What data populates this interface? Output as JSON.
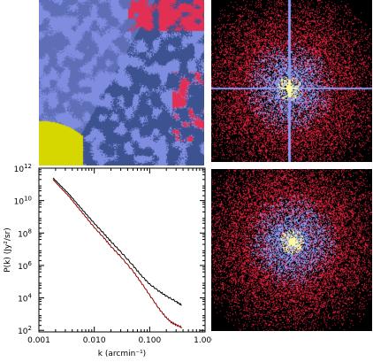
{
  "chart_data": {
    "type": "line",
    "xlabel": "k (arcmin⁻¹)",
    "ylabel": "P(k) (Jy²/sr)",
    "xscale": "log",
    "yscale": "log",
    "xlim": [
      0.001,
      1.0
    ],
    "ylim": [
      80,
      1000000000000.0
    ],
    "xticks": [
      {
        "value": 0.001,
        "label": "0.001"
      },
      {
        "value": 0.01,
        "label": "0.010"
      },
      {
        "value": 0.1,
        "label": "0.100"
      },
      {
        "value": 1.0,
        "label": "1.000"
      }
    ],
    "yticks": [
      {
        "value": 100,
        "base": "10",
        "exp": "2"
      },
      {
        "value": 10000,
        "base": "10",
        "exp": "4"
      },
      {
        "value": 1000000,
        "base": "10",
        "exp": "6"
      },
      {
        "value": 100000000,
        "base": "10",
        "exp": "8"
      },
      {
        "value": 10000000000,
        "base": "10",
        "exp": "10"
      },
      {
        "value": 1000000000000,
        "base": "10",
        "exp": "12"
      }
    ],
    "series": [
      {
        "color": "#000000",
        "x": [
          0.0018,
          0.0025,
          0.0035,
          0.005,
          0.007,
          0.01,
          0.015,
          0.02,
          0.03,
          0.05,
          0.07,
          0.1,
          0.15,
          0.2,
          0.3,
          0.38
        ],
        "y": [
          250000000000.0,
          80000000000.0,
          25000000000.0,
          6000000000.0,
          1600000000.0,
          400000000.0,
          90000000.0,
          30000000.0,
          7000000.0,
          1000000.0,
          250000.0,
          70000.0,
          25000.0,
          13000.0,
          6000.0,
          3500.0
        ]
      },
      {
        "color": "#8b0000",
        "x": [
          0.0018,
          0.0025,
          0.0035,
          0.005,
          0.007,
          0.01,
          0.015,
          0.02,
          0.03,
          0.05,
          0.07,
          0.1,
          0.15,
          0.2,
          0.25,
          0.3,
          0.38
        ],
        "y": [
          200000000000.0,
          60000000000.0,
          18000000000.0,
          4000000000.0,
          1000000000.0,
          220000000.0,
          50000000.0,
          15000000.0,
          3500000.0,
          450000.0,
          90000.0,
          15000.0,
          2000.0,
          600,
          300,
          220,
          150
        ]
      }
    ]
  },
  "images": {
    "map": {
      "colors": [
        "#3d5290",
        "#7f8de0",
        "#e23055",
        "#d6d600"
      ]
    },
    "power_spectrum_2d": {
      "colors": [
        "#000000",
        "#d41f3a",
        "#8a9af0",
        "#fffaa0"
      ],
      "cross": true
    },
    "power_spectrum_2d_filtered": {
      "colors": [
        "#000000",
        "#d41f3a",
        "#8a9af0",
        "#fffaa0"
      ],
      "cross": false
    }
  }
}
